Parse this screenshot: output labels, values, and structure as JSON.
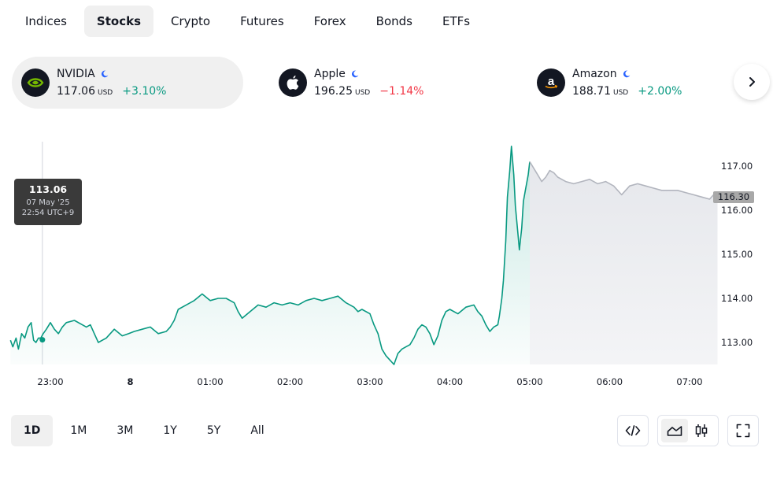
{
  "tabs": [
    "Indices",
    "Stocks",
    "Crypto",
    "Futures",
    "Forex",
    "Bonds",
    "ETFs"
  ],
  "active_tab": "Stocks",
  "tickers": [
    {
      "name": "NVIDIA",
      "price": "117.06",
      "currency": "USD",
      "change": "+3.10%",
      "direction": "up",
      "logo": "nvidia-logo"
    },
    {
      "name": "Apple",
      "price": "196.25",
      "currency": "USD",
      "change": "−1.14%",
      "direction": "down",
      "logo": "apple-logo"
    },
    {
      "name": "Amazon",
      "price": "188.71",
      "currency": "USD",
      "change": "+2.00%",
      "direction": "up",
      "logo": "amazon-logo"
    }
  ],
  "tooltip": {
    "value": "113.06",
    "date": "07 May '25",
    "time": "22:54 UTC+9"
  },
  "last_price_tag": "116.30",
  "ranges": [
    "1D",
    "1M",
    "3M",
    "1Y",
    "5Y",
    "All"
  ],
  "active_range": "1D",
  "colors": {
    "up": "#089981",
    "down": "#f23645",
    "after_hours": "#b2b5be",
    "text": "#131722",
    "active_bg": "#f0f0f0"
  },
  "chart_data": {
    "type": "line",
    "x_tick_labels": [
      "23:00",
      "8",
      "01:00",
      "02:00",
      "03:00",
      "04:00",
      "05:00",
      "06:00",
      "07:00"
    ],
    "y_tick_labels": [
      "117.00",
      "116.00",
      "115.00",
      "114.00",
      "113.00"
    ],
    "ylim": [
      112.5,
      117.5
    ],
    "series": [
      {
        "session": "regular",
        "points": [
          [
            22.5,
            113.05
          ],
          [
            22.53,
            112.9
          ],
          [
            22.57,
            113.1
          ],
          [
            22.6,
            112.85
          ],
          [
            22.64,
            113.2
          ],
          [
            22.68,
            113.1
          ],
          [
            22.72,
            113.35
          ],
          [
            22.76,
            113.45
          ],
          [
            22.79,
            113.05
          ],
          [
            22.82,
            113.0
          ],
          [
            22.85,
            113.1
          ],
          [
            22.88,
            113.1
          ],
          [
            22.91,
            113.2
          ],
          [
            22.95,
            113.3
          ],
          [
            23.0,
            113.45
          ],
          [
            23.05,
            113.3
          ],
          [
            23.1,
            113.2
          ],
          [
            23.15,
            113.35
          ],
          [
            23.2,
            113.45
          ],
          [
            23.3,
            113.5
          ],
          [
            23.4,
            113.4
          ],
          [
            23.45,
            113.35
          ],
          [
            23.5,
            113.4
          ],
          [
            23.55,
            113.2
          ],
          [
            23.6,
            113.0
          ],
          [
            23.7,
            113.1
          ],
          [
            23.8,
            113.3
          ],
          [
            23.9,
            113.15
          ],
          [
            23.98,
            113.2
          ],
          [
            24.05,
            113.25
          ],
          [
            24.15,
            113.3
          ],
          [
            24.25,
            113.35
          ],
          [
            24.35,
            113.2
          ],
          [
            24.45,
            113.25
          ],
          [
            24.5,
            113.35
          ],
          [
            24.55,
            113.5
          ],
          [
            24.6,
            113.75
          ],
          [
            24.7,
            113.85
          ],
          [
            24.8,
            113.95
          ],
          [
            24.9,
            114.1
          ],
          [
            25.0,
            113.95
          ],
          [
            25.1,
            114.0
          ],
          [
            25.2,
            114.0
          ],
          [
            25.3,
            113.9
          ],
          [
            25.35,
            113.7
          ],
          [
            25.4,
            113.55
          ],
          [
            25.5,
            113.7
          ],
          [
            25.6,
            113.85
          ],
          [
            25.7,
            113.8
          ],
          [
            25.8,
            113.9
          ],
          [
            25.9,
            113.85
          ],
          [
            26.0,
            113.9
          ],
          [
            26.1,
            113.85
          ],
          [
            26.2,
            113.95
          ],
          [
            26.3,
            114.0
          ],
          [
            26.4,
            113.95
          ],
          [
            26.5,
            114.0
          ],
          [
            26.6,
            114.05
          ],
          [
            26.7,
            113.9
          ],
          [
            26.8,
            113.8
          ],
          [
            26.85,
            113.7
          ],
          [
            26.9,
            113.75
          ],
          [
            27.0,
            113.65
          ],
          [
            27.05,
            113.4
          ],
          [
            27.1,
            113.2
          ],
          [
            27.15,
            112.85
          ],
          [
            27.2,
            112.7
          ],
          [
            27.25,
            112.6
          ],
          [
            27.3,
            112.5
          ],
          [
            27.35,
            112.75
          ],
          [
            27.4,
            112.85
          ],
          [
            27.45,
            112.9
          ],
          [
            27.5,
            112.95
          ],
          [
            27.55,
            113.1
          ],
          [
            27.6,
            113.3
          ],
          [
            27.65,
            113.4
          ],
          [
            27.7,
            113.35
          ],
          [
            27.75,
            113.2
          ],
          [
            27.8,
            112.95
          ],
          [
            27.85,
            113.15
          ],
          [
            27.9,
            113.5
          ],
          [
            27.95,
            113.7
          ],
          [
            28.0,
            113.75
          ],
          [
            28.1,
            113.65
          ],
          [
            28.2,
            113.8
          ],
          [
            28.3,
            113.85
          ],
          [
            28.35,
            113.7
          ],
          [
            28.4,
            113.6
          ],
          [
            28.45,
            113.4
          ],
          [
            28.5,
            113.25
          ],
          [
            28.55,
            113.35
          ],
          [
            28.6,
            113.4
          ],
          [
            28.62,
            113.6
          ],
          [
            28.65,
            114.0
          ],
          [
            28.67,
            114.4
          ],
          [
            28.7,
            115.3
          ],
          [
            28.72,
            116.3
          ],
          [
            28.75,
            116.9
          ],
          [
            28.77,
            117.45
          ],
          [
            28.8,
            116.8
          ],
          [
            28.82,
            116.1
          ],
          [
            28.85,
            115.5
          ],
          [
            28.87,
            115.1
          ],
          [
            28.9,
            115.6
          ],
          [
            28.92,
            116.2
          ],
          [
            28.95,
            116.5
          ],
          [
            28.98,
            116.8
          ],
          [
            29.0,
            117.1
          ]
        ]
      },
      {
        "session": "after_hours",
        "points": [
          [
            29.0,
            117.1
          ],
          [
            29.05,
            116.95
          ],
          [
            29.1,
            116.8
          ],
          [
            29.15,
            116.65
          ],
          [
            29.2,
            116.75
          ],
          [
            29.25,
            116.9
          ],
          [
            29.3,
            116.85
          ],
          [
            29.35,
            116.75
          ],
          [
            29.45,
            116.65
          ],
          [
            29.55,
            116.6
          ],
          [
            29.65,
            116.65
          ],
          [
            29.75,
            116.7
          ],
          [
            29.85,
            116.6
          ],
          [
            29.95,
            116.65
          ],
          [
            30.05,
            116.55
          ],
          [
            30.15,
            116.35
          ],
          [
            30.25,
            116.55
          ],
          [
            30.35,
            116.6
          ],
          [
            30.45,
            116.55
          ],
          [
            30.55,
            116.5
          ],
          [
            30.65,
            116.45
          ],
          [
            30.75,
            116.45
          ],
          [
            30.85,
            116.45
          ],
          [
            30.95,
            116.4
          ],
          [
            31.05,
            116.35
          ],
          [
            31.15,
            116.3
          ],
          [
            31.25,
            116.25
          ],
          [
            31.3,
            116.35
          ],
          [
            31.35,
            116.3
          ]
        ]
      }
    ],
    "highlight_point": {
      "x": 22.9,
      "y": 113.06
    }
  }
}
